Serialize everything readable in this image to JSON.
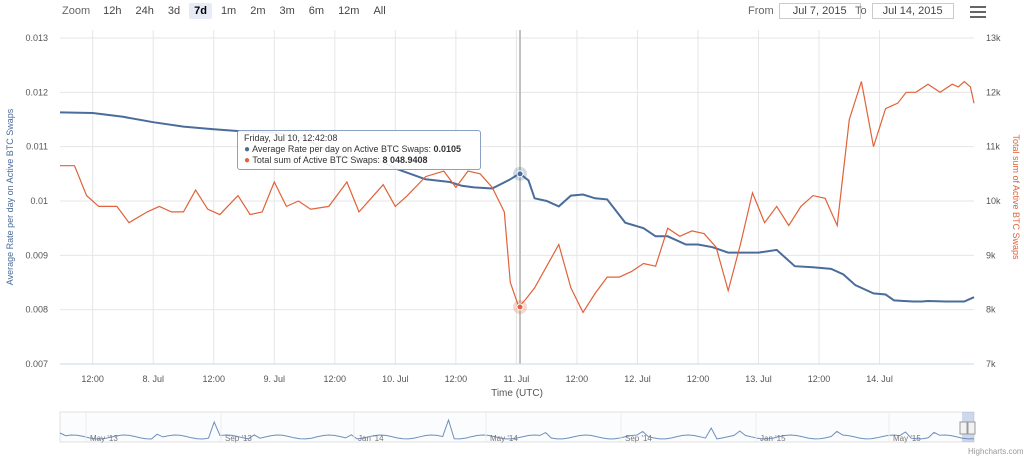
{
  "zoom": {
    "title": "Zoom",
    "buttons": [
      "12h",
      "24h",
      "3d",
      "7d",
      "1m",
      "2m",
      "3m",
      "6m",
      "12m",
      "All"
    ],
    "active": "7d"
  },
  "range": {
    "from_label": "From",
    "from_value": "Jul 7, 2015",
    "to_label": "To",
    "to_value": "Jul 14, 2015"
  },
  "menu_icon": "hamburger-menu-icon",
  "tooltip": {
    "header": "Friday, Jul 10, 12:42:08",
    "series1_label": "Average Rate per day on Active BTC Swaps: ",
    "series1_value": "0.0105",
    "series2_label": "Total sum of Active BTC Swaps: ",
    "series2_value": "8 048.9408"
  },
  "credits": "Highcharts.com",
  "colors": {
    "rate": "#4a6c9b",
    "total": "#e0623a",
    "grid": "#e6e6e6"
  },
  "chart_data": {
    "type": "line",
    "xlabel": "Time (UTC)",
    "x_ticks": [
      "12:00",
      "8. Jul",
      "12:00",
      "9. Jul",
      "12:00",
      "10. Jul",
      "12:00",
      "11. Jul",
      "12:00",
      "12. Jul",
      "12:00",
      "13. Jul",
      "12:00",
      "14. Jul"
    ],
    "x_range_days": [
      -0.27,
      7.28
    ],
    "y_left": {
      "label": "Average Rate per day on Active BTC Swaps",
      "min": 0.007,
      "max": 0.013,
      "ticks": [
        "0.007",
        "0.008",
        "0.009",
        "0.01",
        "0.011",
        "0.012",
        "0.013"
      ]
    },
    "y_right": {
      "label": "Total sum of Active BTC Swaps",
      "min": 7000,
      "max": 13000,
      "ticks": [
        "7k",
        "8k",
        "9k",
        "10k",
        "11k",
        "12k",
        "13k"
      ]
    },
    "highlight_x": 3.53,
    "series": [
      {
        "name": "Average Rate per day on Active BTC Swaps",
        "axis": "left",
        "x": [
          -0.27,
          0.0,
          0.25,
          0.5,
          0.75,
          1.0,
          1.25,
          1.5,
          1.75,
          2.0,
          2.12,
          2.25,
          2.4,
          2.5,
          2.75,
          2.95,
          3.05,
          3.15,
          3.3,
          3.45,
          3.5,
          3.53,
          3.6,
          3.65,
          3.75,
          3.85,
          3.95,
          4.05,
          4.15,
          4.25,
          4.4,
          4.55,
          4.65,
          4.75,
          4.9,
          5.0,
          5.12,
          5.25,
          5.38,
          5.5,
          5.65,
          5.8,
          5.95,
          6.1,
          6.2,
          6.3,
          6.35,
          6.45,
          6.55,
          6.62,
          6.7,
          6.78,
          6.85,
          6.9,
          7.05,
          7.2,
          7.28
        ],
        "values": [
          0.01163,
          0.01162,
          0.01155,
          0.01145,
          0.01137,
          0.01132,
          0.01128,
          0.01126,
          0.01115,
          0.01085,
          0.0108,
          0.01078,
          0.01072,
          0.0106,
          0.0104,
          0.01035,
          0.01028,
          0.01025,
          0.01023,
          0.0104,
          0.01047,
          0.0105,
          0.01038,
          0.01005,
          0.01,
          0.0099,
          0.0101,
          0.01012,
          0.01005,
          0.01003,
          0.0096,
          0.0095,
          0.00935,
          0.00935,
          0.0092,
          0.0092,
          0.00915,
          0.00905,
          0.00905,
          0.00905,
          0.0091,
          0.0088,
          0.00878,
          0.00875,
          0.00865,
          0.00845,
          0.0084,
          0.0083,
          0.00828,
          0.00817,
          0.00816,
          0.00815,
          0.00815,
          0.00816,
          0.00815,
          0.00815,
          0.00823
        ]
      },
      {
        "name": "Total sum of Active BTC Swaps",
        "axis": "right",
        "x": [
          -0.27,
          -0.15,
          -0.05,
          0.05,
          0.2,
          0.3,
          0.45,
          0.55,
          0.65,
          0.75,
          0.85,
          0.95,
          1.05,
          1.2,
          1.3,
          1.4,
          1.5,
          1.6,
          1.7,
          1.8,
          1.95,
          2.1,
          2.2,
          2.3,
          2.4,
          2.5,
          2.6,
          2.75,
          2.9,
          3.0,
          3.1,
          3.2,
          3.3,
          3.4,
          3.45,
          3.52,
          3.58,
          3.65,
          3.75,
          3.85,
          3.95,
          4.05,
          4.15,
          4.25,
          4.35,
          4.45,
          4.55,
          4.65,
          4.75,
          4.85,
          4.95,
          5.05,
          5.15,
          5.25,
          5.35,
          5.45,
          5.55,
          5.65,
          5.75,
          5.85,
          5.95,
          6.05,
          6.15,
          6.25,
          6.35,
          6.45,
          6.55,
          6.65,
          6.72,
          6.8,
          6.9,
          7.0,
          7.1,
          7.15,
          7.2,
          7.25,
          7.28
        ],
        "values": [
          10650,
          10650,
          10100,
          9900,
          9900,
          9600,
          9800,
          9900,
          9800,
          9800,
          10200,
          9850,
          9750,
          10100,
          9750,
          9800,
          10350,
          9900,
          10000,
          9850,
          9900,
          10350,
          9800,
          10050,
          10300,
          9900,
          10100,
          10450,
          10550,
          10250,
          10550,
          10500,
          10250,
          9800,
          8500,
          8050,
          8200,
          8400,
          8800,
          9200,
          8400,
          7950,
          8300,
          8600,
          8600,
          8700,
          8850,
          8800,
          9500,
          9350,
          9450,
          9400,
          9150,
          8350,
          9200,
          10150,
          9600,
          9900,
          9550,
          9900,
          10100,
          10050,
          9550,
          11500,
          12200,
          11000,
          11700,
          11800,
          12000,
          12000,
          12150,
          12000,
          12150,
          12100,
          12200,
          12100,
          11800
        ]
      }
    ],
    "navigator": {
      "x_ticks": [
        "May '13",
        "Sep '13",
        "Jan '14",
        "May '14",
        "Sep '14",
        "Jan '15",
        "May '15"
      ]
    }
  }
}
